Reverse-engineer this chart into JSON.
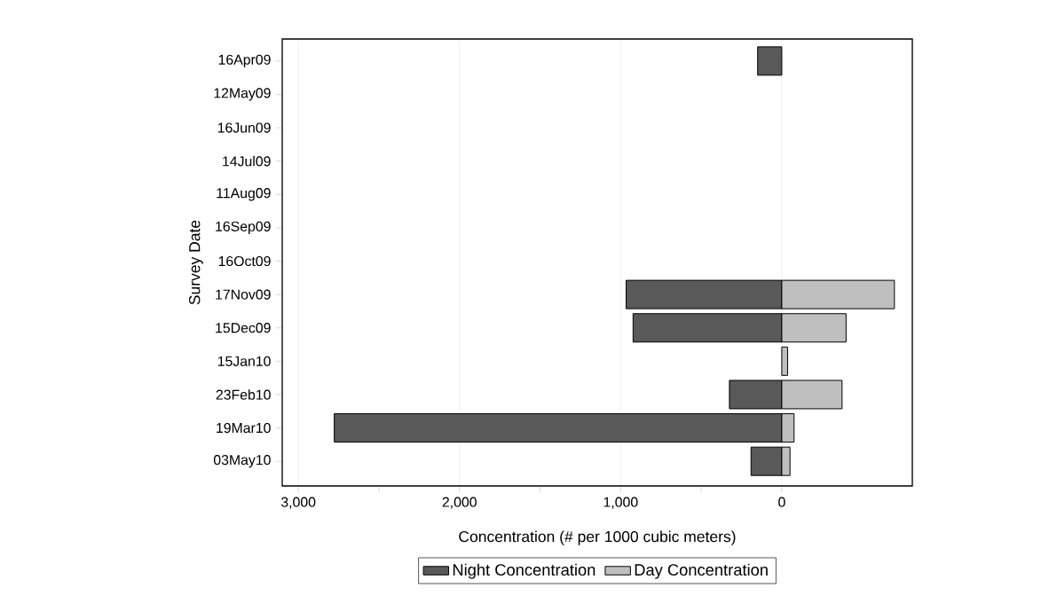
{
  "chart_data": {
    "type": "bar",
    "orientation": "horizontal",
    "xlabel": "Concentration (# per 1000 cubic meters)",
    "ylabel": "Survey Date",
    "categories": [
      "16Apr09",
      "12May09",
      "16Jun09",
      "14Jul09",
      "11Aug09",
      "16Sep09",
      "16Oct09",
      "17Nov09",
      "15Dec09",
      "15Jan10",
      "23Feb10",
      "19Mar10",
      "03May10"
    ],
    "series": [
      {
        "name": "Night Concentration",
        "color": "#595959",
        "values": [
          -150,
          0,
          0,
          0,
          0,
          0,
          0,
          -966,
          -923,
          0,
          -325,
          -2777,
          -191
        ]
      },
      {
        "name": "Day Concentration",
        "color": "#bfbfbf",
        "values": [
          0,
          0,
          0,
          0,
          0,
          0,
          0,
          699,
          399,
          36,
          374,
          76,
          51
        ]
      }
    ],
    "xlim": [
      -3100,
      810
    ],
    "xticks": [
      {
        "value": -3000,
        "label": "3,000"
      },
      {
        "value": -2500,
        "label": null
      },
      {
        "value": -2000,
        "label": "2,000"
      },
      {
        "value": -1500,
        "label": null
      },
      {
        "value": -1000,
        "label": "1,000"
      },
      {
        "value": -500,
        "label": null
      },
      0
    ],
    "grid": "x",
    "legend": "bottom"
  }
}
